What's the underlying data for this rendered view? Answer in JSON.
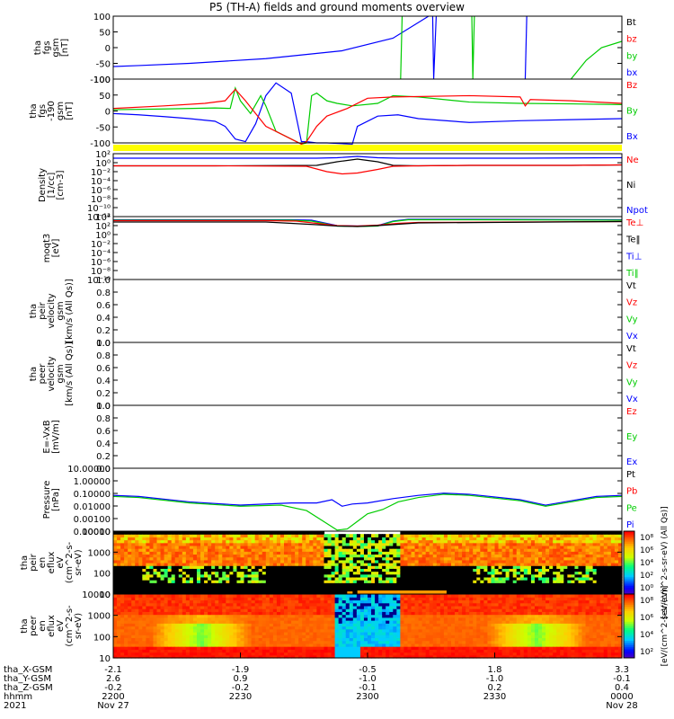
{
  "title": "P5 (TH-A) fields and ground moments overview",
  "chart_data": [
    {
      "type": "line",
      "panel": "fgs",
      "ylabel": [
        "tha",
        "fgs",
        "gsm",
        "[nT]"
      ],
      "yticks": [
        "100",
        "50",
        "0",
        "-50",
        "-100"
      ],
      "ylim": [
        -100,
        100
      ],
      "legend": [
        {
          "name": "Bt",
          "color": "#000000"
        },
        {
          "name": "bz",
          "color": "#ff0000"
        },
        {
          "name": "by",
          "color": "#00cc00"
        },
        {
          "name": "bx",
          "color": "#0000ff"
        }
      ],
      "series": [
        {
          "name": "bx",
          "color": "#0000ff",
          "x": [
            0,
            5,
            15,
            30,
            45,
            55,
            60,
            62
          ],
          "values": [
            -60,
            -57,
            -50,
            -35,
            -10,
            30,
            80,
            100
          ]
        },
        {
          "name": "bx",
          "color": "#0000ff",
          "x": [
            62.8,
            63,
            63.5
          ],
          "values": [
            100,
            -100,
            100
          ]
        },
        {
          "name": "bx",
          "color": "#0000ff",
          "x": [
            81,
            81.3
          ],
          "values": [
            -100,
            100
          ]
        },
        {
          "name": "by",
          "color": "#00cc00",
          "x": [
            70.5,
            70.7,
            71
          ],
          "values": [
            100,
            -100,
            100
          ]
        },
        {
          "name": "by",
          "color": "#00cc00",
          "x": [
            90,
            93,
            96,
            100
          ],
          "values": [
            -100,
            -40,
            0,
            20
          ]
        },
        {
          "name": "by",
          "color": "#00cc00",
          "x": [
            56.5,
            56.8
          ],
          "values": [
            -100,
            100
          ]
        }
      ]
    },
    {
      "type": "line",
      "panel": "fgs-190",
      "ylabel": [
        "tha",
        "fgs",
        "-190",
        "gsm",
        "[nT]"
      ],
      "yticks": [
        "100",
        "50",
        "0",
        "-50",
        "-100"
      ],
      "ylim": [
        -125,
        125
      ],
      "legend": [
        {
          "name": "Bz",
          "color": "#ff0000"
        },
        {
          "name": "By",
          "color": "#00cc00"
        },
        {
          "name": "Bx",
          "color": "#0000ff"
        }
      ],
      "series": [
        {
          "name": "Bx",
          "color": "#0000ff",
          "x": [
            0,
            5,
            10,
            15,
            20,
            22,
            24,
            26,
            28,
            30,
            32,
            35,
            37,
            38,
            40,
            42,
            47,
            48,
            52,
            56,
            60,
            70,
            80,
            90,
            100
          ],
          "values": [
            -10,
            -15,
            -22,
            -30,
            -40,
            -60,
            -110,
            -120,
            -50,
            60,
            110,
            70,
            -120,
            -120,
            -125,
            -125,
            -130,
            -60,
            -20,
            -15,
            -30,
            -45,
            -38,
            -34,
            -30
          ]
        },
        {
          "name": "By",
          "color": "#00cc00",
          "x": [
            0,
            10,
            20,
            23,
            24,
            25,
            27,
            29,
            30,
            32,
            37,
            38,
            39,
            40,
            42,
            44,
            47,
            52,
            55,
            60,
            70,
            80,
            90,
            100
          ],
          "values": [
            5,
            8,
            12,
            10,
            90,
            40,
            -10,
            60,
            20,
            -80,
            -130,
            -125,
            60,
            70,
            40,
            30,
            20,
            30,
            60,
            55,
            35,
            30,
            28,
            25
          ]
        },
        {
          "name": "Bz",
          "color": "#ff0000",
          "x": [
            0,
            10,
            18,
            22,
            24,
            26,
            28,
            30,
            37,
            38,
            40,
            42,
            46,
            50,
            55,
            70,
            80,
            81,
            82,
            90,
            100
          ],
          "values": [
            10,
            20,
            30,
            40,
            85,
            40,
            -10,
            -60,
            -130,
            -120,
            -60,
            -20,
            10,
            50,
            55,
            60,
            55,
            20,
            45,
            40,
            30
          ]
        }
      ]
    },
    {
      "type": "line",
      "panel": "density",
      "ylabel": [
        "Density",
        "[1/cc]",
        "[cm-3]"
      ],
      "yticks": [
        "10²",
        "10⁰",
        "10⁻²",
        "10⁻⁴",
        "10⁻⁶",
        "10⁻⁸",
        "10⁻¹⁰",
        "10⁻¹²"
      ],
      "ylim": [
        -12,
        2
      ],
      "yscale": "log",
      "legend": [
        {
          "name": "Ne",
          "color": "#ff0000"
        },
        {
          "name": "Ni",
          "color": "#000000"
        },
        {
          "name": "Npot",
          "color": "#0000ff"
        }
      ],
      "series": [
        {
          "name": "Ni",
          "color": "#000000",
          "x": [
            0,
            20,
            40,
            44,
            48,
            52,
            55,
            60,
            70,
            80,
            90,
            100
          ],
          "values": [
            -0.7,
            -0.7,
            -0.6,
            0.2,
            0.8,
            0.2,
            -0.6,
            -0.7,
            -0.6,
            -0.6,
            -0.6,
            -0.5
          ]
        },
        {
          "name": "Ne",
          "color": "#ff0000",
          "x": [
            0,
            20,
            38,
            42,
            45,
            48,
            52,
            55,
            60,
            70,
            80,
            90,
            100
          ],
          "values": [
            -0.7,
            -0.7,
            -0.8,
            -2.0,
            -2.5,
            -2.3,
            -1.5,
            -0.8,
            -0.7,
            -0.6,
            -0.6,
            -0.6,
            -0.5
          ]
        },
        {
          "name": "Npot",
          "color": "#0000ff",
          "x": [
            0,
            20,
            40,
            44,
            48,
            52,
            56,
            60,
            80,
            100
          ],
          "values": [
            1.0,
            1.0,
            1.0,
            1.1,
            1.4,
            1.1,
            1.0,
            1.0,
            1.0,
            1.1
          ]
        }
      ]
    },
    {
      "type": "line",
      "panel": "temperature",
      "ylabel": [
        "moqt3",
        "[eV]"
      ],
      "yticks": [
        "10⁴",
        "10²",
        "10⁰",
        "10⁻²",
        "10⁻⁴",
        "10⁻⁶",
        "10⁻⁸",
        "10⁻¹⁰"
      ],
      "ylim": [
        -10,
        4
      ],
      "yscale": "log",
      "legend": [
        {
          "name": "Te⊥",
          "color": "#ff0000"
        },
        {
          "name": "Te‖",
          "color": "#000000"
        },
        {
          "name": "Ti⊥",
          "color": "#0000ff"
        },
        {
          "name": "Ti‖",
          "color": "#00cc00"
        }
      ],
      "series": [
        {
          "name": "Ti⊥",
          "color": "#0000ff",
          "x": [
            0,
            35,
            39,
            44,
            48,
            52,
            55,
            58,
            70,
            100
          ],
          "values": [
            3.3,
            3.3,
            3.2,
            2.0,
            1.9,
            2.0,
            3.0,
            3.4,
            3.4,
            3.3
          ]
        },
        {
          "name": "Ti‖",
          "color": "#00cc00",
          "x": [
            0,
            35,
            39,
            44,
            48,
            52,
            55,
            58,
            70,
            100
          ],
          "values": [
            3.2,
            3.2,
            3.0,
            1.9,
            1.8,
            1.9,
            2.9,
            3.3,
            3.3,
            3.2
          ]
        },
        {
          "name": "Te⊥",
          "color": "#ff0000",
          "x": [
            0,
            30,
            36,
            40,
            44,
            48,
            52,
            56,
            60,
            80,
            100
          ],
          "values": [
            3.1,
            3.1,
            3.0,
            2.5,
            2.0,
            1.9,
            2.1,
            2.5,
            2.7,
            2.8,
            2.9
          ]
        },
        {
          "name": "Te‖",
          "color": "#000000",
          "x": [
            0,
            30,
            40,
            44,
            48,
            52,
            60,
            100
          ],
          "values": [
            2.8,
            2.8,
            2.2,
            1.9,
            1.8,
            2.0,
            2.6,
            2.9
          ]
        }
      ]
    },
    {
      "type": "line",
      "panel": "peir-velocity",
      "ylabel": [
        "tha",
        "peir",
        "velocity",
        "gsm",
        "[km/s (All Qs)]"
      ],
      "yticks": [
        "1.0",
        "0.8",
        "0.6",
        "0.4",
        "0.2",
        "0.0"
      ],
      "ylim": [
        0,
        1
      ],
      "legend": [
        {
          "name": "Vt",
          "color": "#000000"
        },
        {
          "name": "Vz",
          "color": "#ff0000"
        },
        {
          "name": "Vy",
          "color": "#00cc00"
        },
        {
          "name": "Vx",
          "color": "#0000ff"
        }
      ],
      "series": []
    },
    {
      "type": "line",
      "panel": "peer-velocity",
      "ylabel": [
        "tha",
        "peer",
        "velocity",
        "gsm",
        "[km/s (All Qs)]"
      ],
      "yticks": [
        "1.0",
        "0.8",
        "0.6",
        "0.4",
        "0.2",
        "0.0"
      ],
      "ylim": [
        0,
        1
      ],
      "legend": [
        {
          "name": "Vt",
          "color": "#000000"
        },
        {
          "name": "Vz",
          "color": "#ff0000"
        },
        {
          "name": "Vy",
          "color": "#00cc00"
        },
        {
          "name": "Vx",
          "color": "#0000ff"
        }
      ],
      "series": []
    },
    {
      "type": "line",
      "panel": "efield",
      "ylabel": [
        "E=-VxB",
        "[mV/m]"
      ],
      "yticks": [
        "1.0",
        "0.8",
        "0.6",
        "0.4",
        "0.2",
        "0.0"
      ],
      "ylim": [
        0,
        1
      ],
      "legend": [
        {
          "name": "Ez",
          "color": "#ff0000"
        },
        {
          "name": "Ey",
          "color": "#00cc00"
        },
        {
          "name": "Ex",
          "color": "#0000ff"
        }
      ],
      "series": []
    },
    {
      "type": "line",
      "panel": "pressure",
      "ylabel": [
        "Pressure",
        "[nPa]"
      ],
      "yticks": [
        "10.00000",
        "1.00000",
        "0.10000",
        "0.01000",
        "0.00100",
        "0.00010"
      ],
      "ylim": [
        -4.5,
        1.3
      ],
      "yscale": "log",
      "legend": [
        {
          "name": "Pt",
          "color": "#000000"
        },
        {
          "name": "Pb",
          "color": "#ff0000"
        },
        {
          "name": "Pe",
          "color": "#00cc00"
        },
        {
          "name": "Pi",
          "color": "#0000ff"
        }
      ],
      "series": [
        {
          "name": "Pi",
          "color": "#0000ff",
          "x": [
            0,
            5,
            15,
            25,
            35,
            40,
            43,
            45,
            47,
            50,
            55,
            60,
            65,
            70,
            80,
            85,
            90,
            95,
            100
          ],
          "values": [
            -1.2,
            -1.3,
            -1.8,
            -2.1,
            -1.9,
            -1.9,
            -1.6,
            -2.2,
            -2.0,
            -1.9,
            -1.5,
            -1.2,
            -1.0,
            -1.1,
            -1.6,
            -2.1,
            -1.7,
            -1.3,
            -1.2
          ]
        },
        {
          "name": "Pe",
          "color": "#00cc00",
          "x": [
            0,
            5,
            15,
            25,
            33,
            38,
            41,
            44,
            46,
            48,
            50,
            53,
            56,
            60,
            65,
            70,
            80,
            85,
            90,
            95,
            100
          ],
          "values": [
            -1.3,
            -1.4,
            -1.9,
            -2.2,
            -2.1,
            -2.6,
            -3.5,
            -4.4,
            -4.3,
            -3.6,
            -2.9,
            -2.5,
            -1.8,
            -1.4,
            -1.1,
            -1.2,
            -1.7,
            -2.2,
            -1.8,
            -1.4,
            -1.3
          ]
        }
      ]
    },
    {
      "type": "heatmap",
      "panel": "peir-en-eflux",
      "ylabel": [
        "tha",
        "peir",
        "en",
        "eflux",
        "eV",
        "(cm^2-s-",
        "sr-eV)"
      ],
      "yticks": [
        "10000",
        "1000",
        "100",
        "10"
      ],
      "ylim": [
        1,
        4.3
      ],
      "yscale": "log",
      "colorbar": {
        "label": "[eV/(cm^2-s-sr-eV) (All Qs)]",
        "ticks": [
          "10⁸",
          "10⁶",
          "10⁴",
          "10²",
          "10⁰"
        ]
      }
    },
    {
      "type": "heatmap",
      "panel": "peer-en-eflux",
      "ylabel": [
        "tha",
        "peer",
        "en",
        "eflux",
        "eV",
        "(cm^2-s-",
        "sr-eV)"
      ],
      "yticks": [
        "10000",
        "1000",
        "100",
        "10"
      ],
      "ylim": [
        1,
        4.3
      ],
      "yscale": "log",
      "colorbar": {
        "label": "[eV/(cm^2-s-sr-eV)]",
        "ticks": [
          "10⁸",
          "10⁶",
          "10⁴",
          "10²"
        ]
      }
    }
  ],
  "ephemeris": {
    "rows": [
      {
        "label": "tha_X-GSM",
        "values": [
          "-2.1",
          "-1.9",
          "-0.5",
          "1.8",
          "3.3"
        ]
      },
      {
        "label": "tha_Y-GSM",
        "values": [
          "2.6",
          "0.9",
          "-1.0",
          "-1.0",
          "-0.1"
        ]
      },
      {
        "label": "tha_Z-GSM",
        "values": [
          "-0.2",
          "-0.2",
          "-0.1",
          "0.2",
          "0.4"
        ]
      },
      {
        "label": "hhmm",
        "values": [
          "2200",
          "2230",
          "2300",
          "2330",
          "0000"
        ]
      },
      {
        "label": "2021",
        "values": [
          "Nov 27",
          "",
          "",
          "",
          "Nov 28"
        ]
      }
    ],
    "x_positions": [
      0,
      25,
      50,
      75,
      100
    ]
  }
}
